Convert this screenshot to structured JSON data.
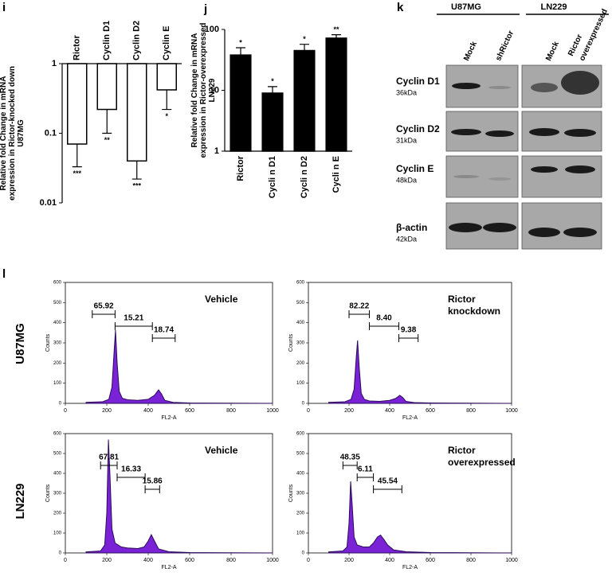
{
  "figure": {
    "panel_labels": [
      "i",
      "j",
      "k",
      "l"
    ],
    "row_labels": [
      "U87MG",
      "LN229"
    ]
  },
  "blot": {
    "groups": [
      "U87MG",
      "LN229"
    ],
    "lanes": [
      [
        "Mock"
      ],
      [
        "shRictor"
      ],
      [
        "Mock"
      ],
      [
        "Rictor",
        "overexpressed"
      ]
    ],
    "rows": [
      {
        "protein": "Cyclin D1",
        "size": "36kDa"
      },
      {
        "protein": "Cyclin D2",
        "size": "31kDa"
      },
      {
        "protein": "Cyclin E",
        "size": "48kDa"
      },
      {
        "protein": "β-actin",
        "size": "42kDa"
      }
    ]
  },
  "chart_data": [
    {
      "type": "bar",
      "y_label": "Relative fold Change in mRNA expression in Rictor-knocked down U87MG",
      "categories": [
        "Rictor",
        "Cyclin D1",
        "Cyclin D2",
        "Cyclin E"
      ],
      "values": [
        0.07,
        0.22,
        0.04,
        0.42
      ],
      "errors": [
        0.037,
        0.12,
        0.018,
        0.2
      ],
      "annotations": [
        "***",
        "**",
        "***",
        "*"
      ],
      "color": "#ffffff",
      "log_y": true,
      "ylim": [
        0.01,
        1
      ],
      "yticks": [
        0.01,
        0.1,
        1
      ]
    },
    {
      "type": "bar",
      "y_label": "Relative fold Change in mRNA expression in Rictor-overexpressed LN229",
      "categories": [
        "Rictor",
        "Cycli n D1",
        "Cycli n D2",
        "Cycli n E"
      ],
      "values": [
        38,
        9,
        45,
        72
      ],
      "errors": [
        12,
        2.5,
        12,
        10
      ],
      "annotations": [
        "*",
        "*",
        "*",
        "**"
      ],
      "color": "#000000",
      "log_y": true,
      "ylim": [
        1,
        100
      ],
      "yticks": [
        1,
        10,
        100
      ]
    },
    {
      "type": "area",
      "x_label": "FL2-A",
      "y_label": "Counts",
      "annotation": [
        "Vehicle"
      ],
      "color": "#7a22d6",
      "x": [
        100,
        180,
        210,
        225,
        235,
        242,
        250,
        260,
        275,
        300,
        350,
        400,
        430,
        450,
        465,
        480,
        520,
        600,
        1000
      ],
      "values": [
        5,
        8,
        20,
        80,
        250,
        363,
        200,
        60,
        25,
        18,
        15,
        20,
        40,
        67,
        45,
        15,
        5,
        2,
        0
      ],
      "gates": [
        {
          "label": "65.92",
          "range": [
            130,
            240
          ]
        },
        {
          "label": "15.21",
          "range": [
            240,
            420
          ]
        },
        {
          "label": "18.74",
          "range": [
            420,
            530
          ]
        }
      ],
      "xlim": [
        0,
        1000
      ],
      "xticks": [
        0,
        200,
        400,
        600,
        800,
        1000
      ],
      "ylim": [
        0,
        600
      ],
      "yticks": [
        0,
        100,
        200,
        300,
        400,
        500,
        600
      ]
    },
    {
      "type": "area",
      "x_label": "FL2-A",
      "y_label": "Counts",
      "annotation": [
        "Rictor",
        "knockdown"
      ],
      "color": "#7a22d6",
      "x": [
        100,
        180,
        210,
        225,
        235,
        242,
        250,
        260,
        275,
        300,
        350,
        400,
        430,
        450,
        465,
        480,
        520,
        600,
        1000
      ],
      "values": [
        5,
        8,
        20,
        70,
        220,
        312,
        180,
        50,
        20,
        12,
        10,
        15,
        25,
        40,
        28,
        10,
        4,
        2,
        0
      ],
      "gates": [
        {
          "label": "82.22",
          "range": [
            200,
            300
          ]
        },
        {
          "label": "8.40",
          "range": [
            300,
            445
          ]
        },
        {
          "label": "9.38",
          "range": [
            445,
            540
          ]
        }
      ],
      "xlim": [
        0,
        1000
      ],
      "xticks": [
        0,
        200,
        400,
        600,
        800,
        1000
      ],
      "ylim": [
        0,
        600
      ],
      "yticks": [
        0,
        100,
        200,
        300,
        400,
        500,
        600
      ]
    },
    {
      "type": "area",
      "x_label": "FL2-A",
      "y_label": "Counts",
      "annotation": [
        "Vehicle"
      ],
      "color": "#7a22d6",
      "x": [
        100,
        170,
        190,
        200,
        208,
        215,
        225,
        240,
        270,
        300,
        350,
        380,
        400,
        415,
        430,
        450,
        500,
        600,
        1000
      ],
      "values": [
        5,
        10,
        40,
        200,
        570,
        400,
        120,
        50,
        30,
        25,
        22,
        30,
        60,
        92,
        60,
        20,
        6,
        2,
        0
      ],
      "gates": [
        {
          "label": "67.81",
          "range": [
            170,
            250
          ]
        },
        {
          "label": "16.33",
          "range": [
            250,
            385
          ]
        },
        {
          "label": "15.86",
          "range": [
            385,
            455
          ]
        }
      ],
      "xlim": [
        0,
        1000
      ],
      "xticks": [
        0,
        200,
        400,
        600,
        800,
        1000
      ],
      "ylim": [
        0,
        600
      ],
      "yticks": [
        0,
        100,
        200,
        300,
        400,
        500,
        600
      ]
    },
    {
      "type": "area",
      "x_label": "FL2-A",
      "y_label": "Counts",
      "annotation": [
        "Rictor",
        "overexpressed"
      ],
      "color": "#7a22d6",
      "x": [
        100,
        170,
        190,
        200,
        208,
        215,
        225,
        240,
        270,
        300,
        320,
        340,
        355,
        370,
        390,
        420,
        480,
        600,
        1000
      ],
      "values": [
        5,
        10,
        30,
        150,
        360,
        250,
        80,
        40,
        30,
        30,
        50,
        80,
        90,
        70,
        40,
        15,
        6,
        2,
        0
      ],
      "gates": [
        {
          "label": "48.35",
          "range": [
            170,
            240
          ]
        },
        {
          "label": "6.11",
          "range": [
            240,
            320
          ]
        },
        {
          "label": "45.54",
          "range": [
            320,
            460
          ]
        }
      ],
      "xlim": [
        0,
        1000
      ],
      "xticks": [
        0,
        200,
        400,
        600,
        800,
        1000
      ],
      "ylim": [
        0,
        600
      ],
      "yticks": [
        0,
        100,
        200,
        300,
        400,
        500,
        600
      ]
    }
  ]
}
